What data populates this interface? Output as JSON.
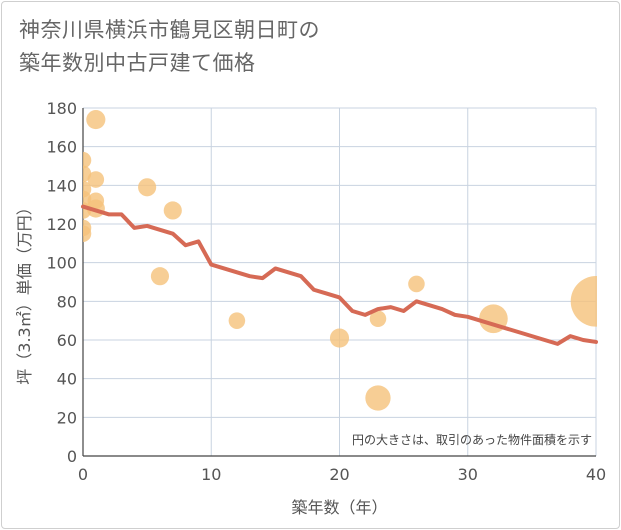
{
  "title_lines": [
    "神奈川県横浜市鶴見区朝日町の",
    "築年数別中古戸建て価格"
  ],
  "chart_data": {
    "type": "scatter",
    "title": "神奈川県横浜市鶴見区朝日町の築年数別中古戸建て価格",
    "xlabel": "築年数（年）",
    "ylabel": "坪（3.3㎡）単価（万円）",
    "xlim": [
      0,
      40
    ],
    "ylim": [
      0,
      180
    ],
    "x_ticks": [
      0,
      10,
      20,
      30,
      40
    ],
    "y_ticks": [
      0,
      20,
      40,
      60,
      80,
      100,
      120,
      140,
      160,
      180
    ],
    "grid": true,
    "note": "円の大きさは、取引のあった物件面積を示す",
    "colors": {
      "bubble": "#f5c27a",
      "line": "#d66a55",
      "grid": "#c8d3e0",
      "axis": "#444444"
    },
    "bubbles": [
      {
        "x": 1,
        "y": 174,
        "size": 2
      },
      {
        "x": 0,
        "y": 153,
        "size": 1.5
      },
      {
        "x": 0,
        "y": 146,
        "size": 1.5
      },
      {
        "x": 1,
        "y": 143,
        "size": 1.5
      },
      {
        "x": 0,
        "y": 138,
        "size": 1.5
      },
      {
        "x": 0,
        "y": 133,
        "size": 1.5
      },
      {
        "x": 1,
        "y": 132,
        "size": 1.5
      },
      {
        "x": 1,
        "y": 128,
        "size": 1.8
      },
      {
        "x": 0,
        "y": 127,
        "size": 1.5
      },
      {
        "x": 0,
        "y": 118,
        "size": 1.5
      },
      {
        "x": 0,
        "y": 115,
        "size": 1.5
      },
      {
        "x": 5,
        "y": 139,
        "size": 1.8
      },
      {
        "x": 7,
        "y": 127,
        "size": 1.8
      },
      {
        "x": 6,
        "y": 93,
        "size": 1.8
      },
      {
        "x": 12,
        "y": 70,
        "size": 1.5
      },
      {
        "x": 20,
        "y": 61,
        "size": 2
      },
      {
        "x": 23,
        "y": 71,
        "size": 1.5
      },
      {
        "x": 23,
        "y": 30,
        "size": 3.5
      },
      {
        "x": 26,
        "y": 89,
        "size": 1.5
      },
      {
        "x": 32,
        "y": 71,
        "size": 4.5
      },
      {
        "x": 40,
        "y": 80,
        "size": 14
      }
    ],
    "trend_line": {
      "x": [
        0,
        1,
        2,
        3,
        4,
        5,
        6,
        7,
        8,
        9,
        10,
        11,
        12,
        13,
        14,
        15,
        16,
        17,
        18,
        19,
        20,
        21,
        22,
        23,
        24,
        25,
        26,
        27,
        28,
        29,
        30,
        31,
        32,
        33,
        34,
        35,
        36,
        37,
        38,
        39,
        40
      ],
      "y": [
        129,
        127,
        125,
        125,
        118,
        119,
        117,
        115,
        109,
        111,
        99,
        97,
        95,
        93,
        92,
        97,
        95,
        93,
        86,
        84,
        82,
        75,
        73,
        76,
        77,
        75,
        80,
        78,
        76,
        73,
        72,
        70,
        68,
        66,
        64,
        62,
        60,
        58,
        62,
        60,
        59
      ]
    }
  }
}
